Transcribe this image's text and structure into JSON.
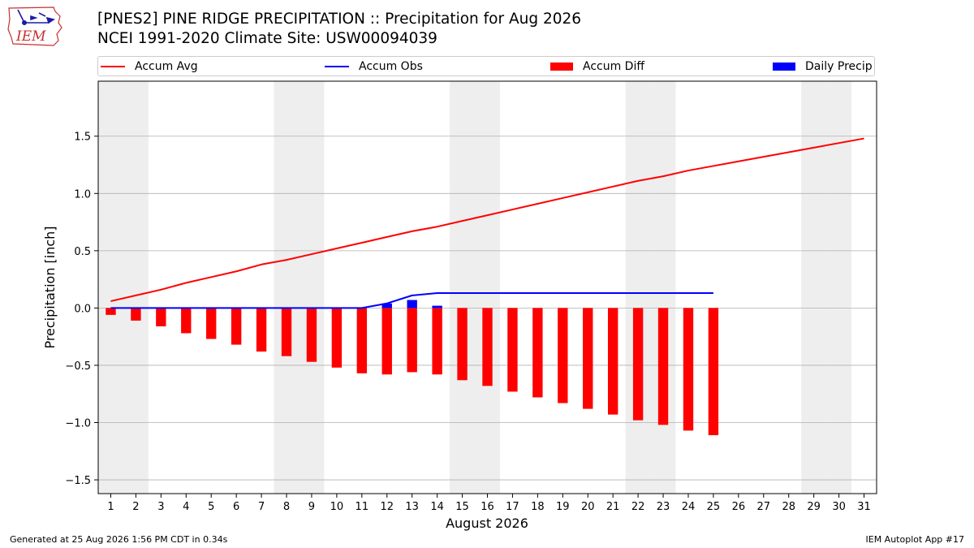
{
  "header": {
    "title": "[PNES2] PINE RIDGE PRECIPITATION :: Precipitation for Aug 2026",
    "subtitle": "NCEI 1991-2020 Climate Site: USW00094039",
    "logo_text": "IEM"
  },
  "footer": {
    "generated": "Generated at 25 Aug 2026 1:56 PM CDT in 0.34s",
    "app": "IEM Autoplot App #17"
  },
  "colors": {
    "avg": "#ff0000",
    "obs": "#0000ff",
    "diff": "#ff0000",
    "daily": "#0000ff",
    "weekend": "#eeeeee",
    "grid": "#b0b0b0"
  },
  "chart_data": {
    "type": "bar",
    "xlabel": "August 2026",
    "ylabel": "Precipitation [inch]",
    "xlim": [
      0.5,
      31.5
    ],
    "ylim": [
      -1.62,
      1.98
    ],
    "yticks": [
      -1.5,
      -1.0,
      -0.5,
      0.0,
      0.5,
      1.0,
      1.5
    ],
    "ytick_labels": [
      "−1.5",
      "−1.0",
      "−0.5",
      "0.0",
      "0.5",
      "1.0",
      "1.5"
    ],
    "xticks": [
      1,
      2,
      3,
      4,
      5,
      6,
      7,
      8,
      9,
      10,
      11,
      12,
      13,
      14,
      15,
      16,
      17,
      18,
      19,
      20,
      21,
      22,
      23,
      24,
      25,
      26,
      27,
      28,
      29,
      30,
      31
    ],
    "grid": "horizontal",
    "legend_position": "top",
    "weekend_days": [
      1,
      2,
      8,
      9,
      15,
      16,
      22,
      23,
      29,
      30
    ],
    "legend": [
      "Accum Avg",
      "Accum Obs",
      "Accum Diff",
      "Daily Precip"
    ],
    "series": [
      {
        "name": "Accum Avg",
        "kind": "line",
        "x": [
          1,
          2,
          3,
          4,
          5,
          6,
          7,
          8,
          9,
          10,
          11,
          12,
          13,
          14,
          15,
          16,
          17,
          18,
          19,
          20,
          21,
          22,
          23,
          24,
          25,
          26,
          27,
          28,
          29,
          30,
          31
        ],
        "values": [
          0.06,
          0.11,
          0.16,
          0.22,
          0.27,
          0.32,
          0.38,
          0.42,
          0.47,
          0.52,
          0.57,
          0.62,
          0.67,
          0.71,
          0.76,
          0.81,
          0.86,
          0.91,
          0.96,
          1.01,
          1.06,
          1.11,
          1.15,
          1.2,
          1.24,
          1.28,
          1.32,
          1.36,
          1.4,
          1.44,
          1.48
        ]
      },
      {
        "name": "Accum Obs",
        "kind": "line",
        "x": [
          1,
          2,
          3,
          4,
          5,
          6,
          7,
          8,
          9,
          10,
          11,
          12,
          13,
          14,
          15,
          16,
          17,
          18,
          19,
          20,
          21,
          22,
          23,
          24,
          25
        ],
        "values": [
          0,
          0,
          0,
          0,
          0,
          0,
          0,
          0,
          0,
          0,
          0,
          0.04,
          0.11,
          0.13,
          0.13,
          0.13,
          0.13,
          0.13,
          0.13,
          0.13,
          0.13,
          0.13,
          0.13,
          0.13,
          0.13
        ]
      },
      {
        "name": "Accum Diff",
        "kind": "bar",
        "x": [
          1,
          2,
          3,
          4,
          5,
          6,
          7,
          8,
          9,
          10,
          11,
          12,
          13,
          14,
          15,
          16,
          17,
          18,
          19,
          20,
          21,
          22,
          23,
          24,
          25
        ],
        "values": [
          -0.06,
          -0.11,
          -0.16,
          -0.22,
          -0.27,
          -0.32,
          -0.38,
          -0.42,
          -0.47,
          -0.52,
          -0.57,
          -0.58,
          -0.56,
          -0.58,
          -0.63,
          -0.68,
          -0.73,
          -0.78,
          -0.83,
          -0.88,
          -0.93,
          -0.98,
          -1.02,
          -1.07,
          -1.11
        ]
      },
      {
        "name": "Daily Precip",
        "kind": "bar",
        "x": [
          12,
          13,
          14
        ],
        "values": [
          0.04,
          0.07,
          0.02
        ]
      }
    ]
  }
}
